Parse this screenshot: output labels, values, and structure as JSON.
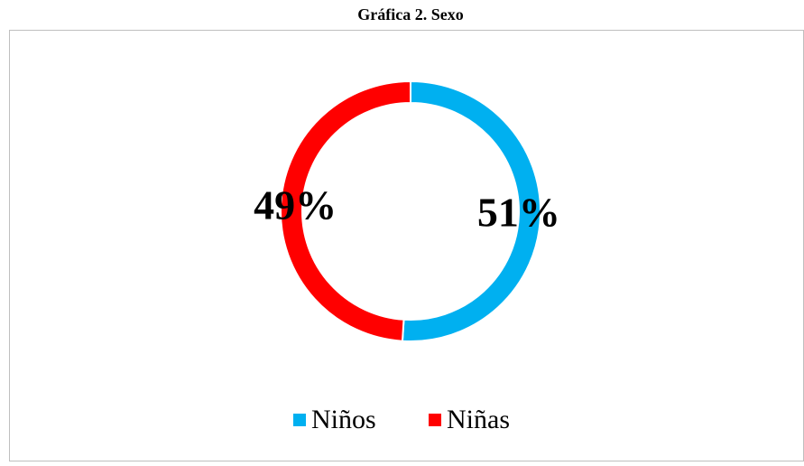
{
  "chart_data": {
    "type": "donut",
    "title": "Gráfica 2. Sexo",
    "categories": [
      "Niños",
      "Niñas"
    ],
    "values": [
      51,
      49
    ],
    "value_labels": [
      "51%",
      "49%"
    ],
    "colors": [
      "#00b0f0",
      "#ff0000"
    ],
    "legend": "bottom"
  }
}
